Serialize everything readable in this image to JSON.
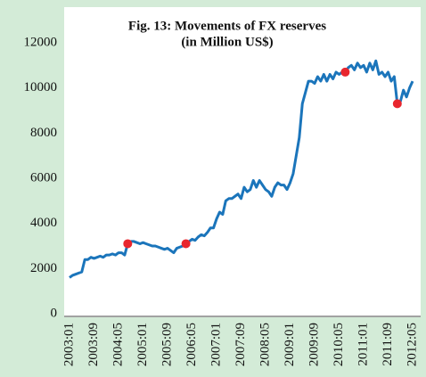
{
  "chart_data": {
    "type": "line",
    "title": "Fig. 13: Movements of FX reserves",
    "subtitle": "(in Million US$)",
    "categories": [
      "2003:01",
      null,
      null,
      null,
      null,
      null,
      null,
      null,
      "2003:09",
      null,
      null,
      null,
      null,
      null,
      null,
      null,
      "2004:05",
      null,
      null,
      null,
      null,
      null,
      null,
      null,
      "2005:01",
      null,
      null,
      null,
      null,
      null,
      null,
      null,
      "2005:09",
      null,
      null,
      null,
      null,
      null,
      null,
      null,
      "2006:05",
      null,
      null,
      null,
      null,
      null,
      null,
      null,
      "2007:01",
      null,
      null,
      null,
      null,
      null,
      null,
      null,
      "2007:09",
      null,
      null,
      null,
      null,
      null,
      null,
      null,
      "2008:05",
      null,
      null,
      null,
      null,
      null,
      null,
      null,
      "2009:01",
      null,
      null,
      null,
      null,
      null,
      null,
      null,
      "2009:09",
      null,
      null,
      null,
      null,
      null,
      null,
      null,
      "2010:05",
      null,
      null,
      null,
      null,
      null,
      null,
      null,
      "2011:01",
      null,
      null,
      null,
      null,
      null,
      null,
      null,
      "2011:09",
      null,
      null,
      null,
      null,
      null,
      null,
      null,
      "2012:05"
    ],
    "series": [
      {
        "color": "#1b75bb",
        "values": [
          1600,
          1700,
          1750,
          1800,
          1850,
          2400,
          2400,
          2500,
          2450,
          2500,
          2550,
          2500,
          2600,
          2600,
          2650,
          2600,
          2700,
          2700,
          2600,
          3100,
          3200,
          3200,
          3150,
          3100,
          3150,
          3100,
          3050,
          3000,
          3000,
          2950,
          2900,
          2850,
          2900,
          2800,
          2700,
          2900,
          2950,
          3000,
          3100,
          3200,
          3300,
          3250,
          3400,
          3500,
          3450,
          3600,
          3800,
          3800,
          4200,
          4500,
          4400,
          5000,
          5100,
          5100,
          5200,
          5300,
          5100,
          5600,
          5400,
          5500,
          5900,
          5600,
          5900,
          5700,
          5500,
          5400,
          5200,
          5600,
          5800,
          5700,
          5700,
          5500,
          5800,
          6200,
          7000,
          7800,
          9300,
          9800,
          10300,
          10300,
          10200,
          10500,
          10300,
          10600,
          10300,
          10600,
          10400,
          10700,
          10600,
          10700,
          10700,
          10900,
          11000,
          10800,
          11100,
          10900,
          11000,
          10700,
          11100,
          10800,
          11200,
          10600,
          10700,
          10500,
          10700,
          10300,
          10500,
          9300,
          9400,
          9900,
          9600,
          10000,
          10300
        ]
      }
    ],
    "highlight_points": [
      19,
      38,
      90,
      107
    ],
    "highlight_color": "#e8262e",
    "ylim": [
      0,
      12000
    ],
    "yticks": [
      0,
      2000,
      4000,
      6000,
      8000,
      10000,
      12000
    ],
    "grid": false
  }
}
